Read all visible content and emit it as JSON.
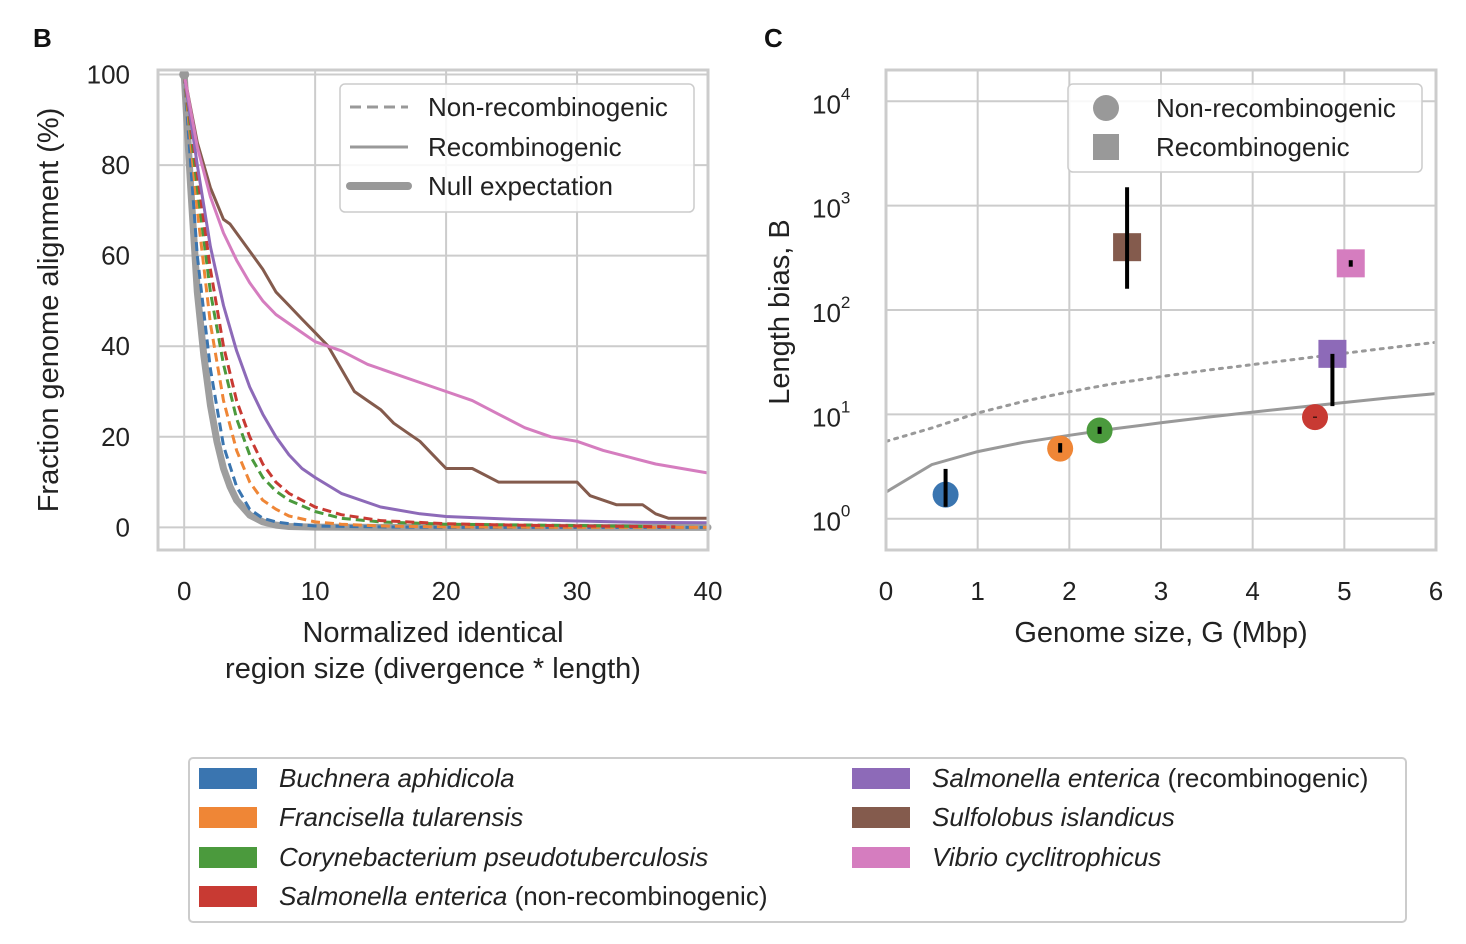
{
  "panels": {
    "b_letter": "B",
    "c_letter": "C"
  },
  "colors": {
    "grid": "#cccccc",
    "frame": "#cccccc",
    "null": "#999999",
    "neutral": "#999999"
  },
  "species": [
    {
      "name": "Buchnera aphidicola",
      "suffix": "",
      "color": "#3a75b0"
    },
    {
      "name": "Francisella tularensis",
      "suffix": "",
      "color": "#ef8636"
    },
    {
      "name": "Corynebacterium pseudotuberculosis",
      "suffix": "",
      "color": "#4b9a3d"
    },
    {
      "name": "Salmonella enterica",
      "suffix": " (non-recombinogenic)",
      "color": "#c83a33"
    },
    {
      "name": "Salmonella enterica",
      "suffix": " (recombinogenic)",
      "color": "#8d6ab8"
    },
    {
      "name": "Sulfolobus islandicus",
      "suffix": "",
      "color": "#845b4d"
    },
    {
      "name": "Vibrio cyclitrophicus",
      "suffix": "",
      "color": "#d57dbf"
    }
  ],
  "chart_data": [
    {
      "panel": "B",
      "type": "line",
      "xlabel": [
        "Normalized identical",
        "region size (divergence * length)"
      ],
      "ylabel": "Fraction genome alignment (%)",
      "xlim": [
        -2,
        40
      ],
      "ylim": [
        -5,
        101
      ],
      "xticks": [
        0,
        10,
        20,
        30,
        40
      ],
      "yticks": [
        0,
        20,
        40,
        60,
        80,
        100
      ],
      "grid": true,
      "legend_position": "top-right",
      "legend": [
        {
          "label": "Non-recombinogenic",
          "style": "dashed"
        },
        {
          "label": "Recombinogenic",
          "style": "solid"
        },
        {
          "label": "Null expectation",
          "style": "thick"
        }
      ],
      "series": [
        {
          "name": "Null expectation",
          "style": "thick",
          "species_index": -1,
          "x": [
            0,
            0.5,
            1,
            1.5,
            2,
            2.5,
            3,
            3.5,
            4,
            5,
            6,
            7,
            8,
            10,
            15,
            20,
            30,
            40
          ],
          "y": [
            100,
            75,
            52,
            38,
            27,
            19,
            13,
            9,
            6,
            2.7,
            1.2,
            0.5,
            0.2,
            0.05,
            0,
            0,
            0,
            0
          ]
        },
        {
          "name": "Buchnera aphidicola",
          "style": "dashed",
          "species_index": 0,
          "x": [
            0,
            1,
            2,
            3,
            4,
            5,
            6,
            7,
            8,
            10,
            15,
            20,
            40
          ],
          "y": [
            100,
            60,
            35,
            18,
            9,
            4,
            2,
            1.2,
            0.8,
            0.3,
            0.1,
            0,
            0
          ]
        },
        {
          "name": "Francisella tularensis",
          "style": "dashed",
          "species_index": 1,
          "x": [
            0,
            1,
            2,
            3,
            4,
            5,
            6,
            7,
            8,
            10,
            12,
            15,
            20,
            30,
            40
          ],
          "y": [
            100,
            70,
            45,
            28,
            17,
            10,
            6,
            4,
            2.5,
            1.2,
            0.7,
            0.3,
            0.1,
            0,
            0
          ]
        },
        {
          "name": "Corynebacterium pseudotuberculosis",
          "style": "dashed",
          "species_index": 2,
          "x": [
            0,
            1,
            2,
            3,
            4,
            5,
            6,
            7,
            8,
            10,
            12,
            15,
            20,
            30,
            35
          ],
          "y": [
            100,
            75,
            52,
            36,
            24,
            16,
            11,
            8,
            6,
            3.5,
            2,
            1.2,
            0.7,
            0.4,
            0.2
          ]
        },
        {
          "name": "Salmonella enterica (non-recombinogenic)",
          "style": "dashed",
          "species_index": 3,
          "x": [
            0,
            1,
            2,
            3,
            4,
            5,
            6,
            7,
            8,
            10,
            12,
            15,
            20,
            25,
            30,
            35,
            37.5
          ],
          "y": [
            100,
            78,
            57,
            40,
            28,
            20,
            14,
            10,
            7.5,
            4.5,
            2.8,
            1.5,
            0.8,
            0.5,
            0.3,
            0.2,
            0.1
          ]
        },
        {
          "name": "Salmonella enterica (recombinogenic)",
          "style": "solid",
          "species_index": 4,
          "x": [
            0,
            1,
            2,
            3,
            4,
            5,
            6,
            7,
            8,
            9,
            10,
            12,
            15,
            18,
            20,
            25,
            30,
            35,
            40
          ],
          "y": [
            100,
            80,
            62,
            49,
            39,
            31,
            25,
            20,
            16,
            13,
            11,
            7.5,
            4.5,
            3,
            2.4,
            1.8,
            1.4,
            1.1,
            1
          ]
        },
        {
          "name": "Sulfolobus islandicus",
          "style": "solid",
          "species_index": 5,
          "x": [
            0,
            1,
            2,
            3,
            3.5,
            5,
            6,
            7,
            8,
            9,
            10,
            11,
            12,
            13,
            14,
            15,
            16,
            17,
            18,
            19,
            20,
            22,
            24,
            26,
            28,
            30,
            31,
            33,
            35,
            36,
            37,
            38,
            40
          ],
          "y": [
            100,
            85,
            75,
            68,
            67,
            61,
            57,
            52,
            49,
            46,
            43,
            40,
            35,
            30,
            28,
            26,
            23,
            21,
            19,
            16,
            13,
            13,
            10,
            10,
            10,
            10,
            7,
            5,
            5,
            3,
            2,
            2,
            2
          ]
        },
        {
          "name": "Vibrio cyclitrophicus",
          "style": "solid",
          "species_index": 6,
          "x": [
            0,
            1,
            2,
            3,
            4,
            5,
            6,
            7,
            8,
            9,
            10,
            12,
            14,
            16,
            18,
            20,
            22,
            24,
            26,
            28,
            30,
            32,
            34,
            36,
            38,
            40
          ],
          "y": [
            100,
            84,
            73,
            65,
            59,
            54,
            50,
            47,
            45,
            43,
            41,
            39,
            36,
            34,
            32,
            30,
            28,
            25,
            22,
            20,
            19,
            17,
            15.5,
            14,
            13,
            12
          ]
        }
      ]
    },
    {
      "panel": "C",
      "type": "scatter",
      "xlabel": "Genome size, G (Mbp)",
      "ylabel": "Length bias, B",
      "xlim": [
        0,
        6
      ],
      "ylim_log10": [
        -0.3,
        4.3
      ],
      "yscale": "log",
      "xticks": [
        0,
        1,
        2,
        3,
        4,
        5,
        6
      ],
      "yticks": [
        {
          "base": "10",
          "exp": "0"
        },
        {
          "base": "10",
          "exp": "1"
        },
        {
          "base": "10",
          "exp": "2"
        },
        {
          "base": "10",
          "exp": "3"
        },
        {
          "base": "10",
          "exp": "4"
        }
      ],
      "grid": true,
      "legend_position": "top-right",
      "legend": [
        {
          "label": "Non-recombinogenic",
          "marker": "circle"
        },
        {
          "label": "Recombinogenic",
          "marker": "square"
        }
      ],
      "points": [
        {
          "species_index": 0,
          "marker": "circle",
          "x": 0.65,
          "y": 1.7,
          "err_low": 1.3,
          "err_high": 3.0
        },
        {
          "species_index": 1,
          "marker": "circle",
          "x": 1.9,
          "y": 4.7,
          "err_low": 4.3,
          "err_high": 5.3
        },
        {
          "species_index": 2,
          "marker": "circle",
          "x": 2.33,
          "y": 7.0,
          "err_low": 6.5,
          "err_high": 7.6
        },
        {
          "species_index": 3,
          "marker": "circle",
          "x": 4.68,
          "y": 9.4,
          "err_low": 9.3,
          "err_high": 9.5
        },
        {
          "species_index": 4,
          "marker": "square",
          "x": 4.87,
          "y": 38,
          "err_low": 12,
          "err_high": 38
        },
        {
          "species_index": 5,
          "marker": "square",
          "x": 2.63,
          "y": 400,
          "err_low": 160,
          "err_high": 1500
        },
        {
          "species_index": 6,
          "marker": "square",
          "x": 5.07,
          "y": 280,
          "err_low": 260,
          "err_high": 300
        }
      ],
      "lines": [
        {
          "style": "solid",
          "x": [
            0,
            0.5,
            1,
            1.5,
            2,
            2.5,
            3,
            3.5,
            4,
            4.5,
            5,
            5.5,
            6
          ],
          "y": [
            1.8,
            3.3,
            4.4,
            5.4,
            6.3,
            7.3,
            8.3,
            9.4,
            10.5,
            11.7,
            13.0,
            14.4,
            15.8
          ]
        },
        {
          "style": "dotted",
          "x": [
            0,
            0.5,
            1,
            1.5,
            2,
            2.5,
            3,
            3.5,
            4,
            4.5,
            5,
            5.5,
            6
          ],
          "y": [
            5.5,
            7.4,
            10.3,
            13.3,
            16.5,
            19.8,
            23.0,
            26.5,
            30.0,
            34.0,
            38.5,
            43.5,
            49.0
          ]
        }
      ]
    }
  ]
}
